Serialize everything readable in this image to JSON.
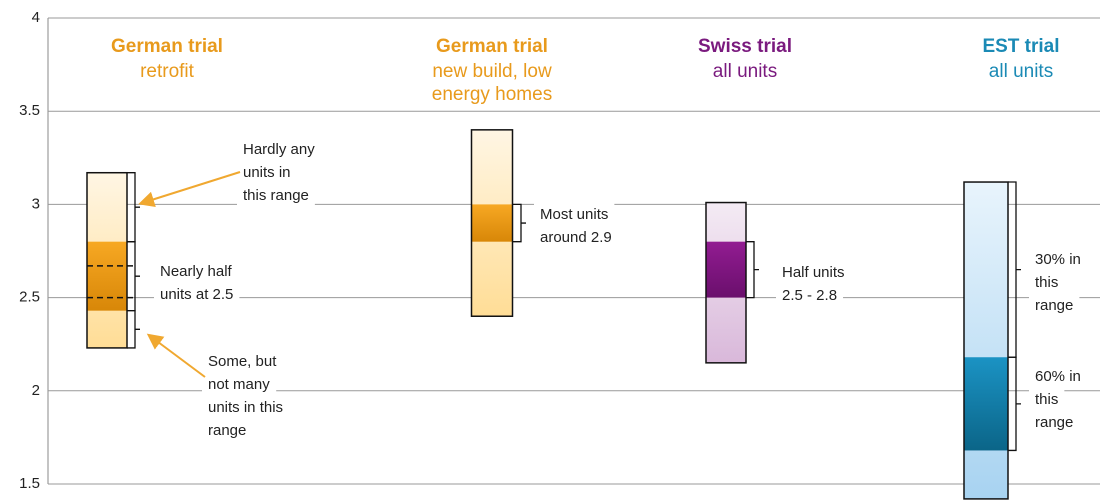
{
  "chart_data": {
    "type": "range",
    "ylim": [
      1.5,
      4
    ],
    "yticks": [
      1.5,
      2,
      2.5,
      3,
      3.5,
      4
    ],
    "grid": true,
    "columns": [
      {
        "title": "German trial",
        "subtitle": [
          "retrofit"
        ],
        "color": "#e89a1c",
        "light": [
          "#fff6e4",
          "#ffdd96"
        ],
        "core": [
          "#f7a823",
          "#d88708"
        ],
        "low": 2.23,
        "high": 3.17,
        "core_low": 2.43,
        "core_high": 2.8,
        "dashes": [
          2.67,
          2.5
        ],
        "annotations": [
          {
            "text": [
              "Hardly any",
              "units in",
              "this range"
            ],
            "low": 2.8,
            "high": 3.17
          },
          {
            "text": [
              "Nearly half",
              "units at 2.5"
            ],
            "low": 2.43,
            "high": 2.8
          },
          {
            "text": [
              "Some, but",
              "not many",
              "units in this",
              "range"
            ],
            "low": 2.23,
            "high": 2.43
          }
        ]
      },
      {
        "title": "German trial",
        "subtitle": [
          "new build, low",
          "energy homes"
        ],
        "color": "#e89a1c",
        "light": [
          "#fff6e4",
          "#ffdd96"
        ],
        "core": [
          "#f7a823",
          "#d88708"
        ],
        "low": 2.4,
        "high": 3.4,
        "core_low": 2.8,
        "core_high": 3.0,
        "dashes": [],
        "annotations": [
          {
            "text": [
              "Most units",
              "around 2.9"
            ],
            "low": 2.8,
            "high": 3.0
          }
        ]
      },
      {
        "title": "Swiss trial",
        "subtitle": [
          "all units"
        ],
        "color": "#7a1a7e",
        "light": [
          "#f4ebf4",
          "#d9b8da"
        ],
        "core": [
          "#921c92",
          "#6a0f6c"
        ],
        "low": 2.15,
        "high": 3.01,
        "core_low": 2.5,
        "core_high": 2.8,
        "dashes": [],
        "annotations": [
          {
            "text": [
              "Half units",
              "2.5 - 2.8"
            ],
            "low": 2.5,
            "high": 2.8
          }
        ]
      },
      {
        "title": "EST trial",
        "subtitle": [
          "all  units"
        ],
        "color": "#1b8ab5",
        "light": [
          "#e8f4fc",
          "#a8d3f1"
        ],
        "core": [
          "#1b93c4",
          "#0b6588"
        ],
        "low": 1.42,
        "high": 3.12,
        "core_low": 1.68,
        "core_high": 2.18,
        "dashes": [],
        "annotations": [
          {
            "text": [
              "30% in",
              "this",
              "range"
            ],
            "low": 2.18,
            "high": 3.12
          },
          {
            "text": [
              "60% in",
              "this",
              "range"
            ],
            "low": 1.68,
            "high": 2.18
          }
        ]
      }
    ]
  }
}
